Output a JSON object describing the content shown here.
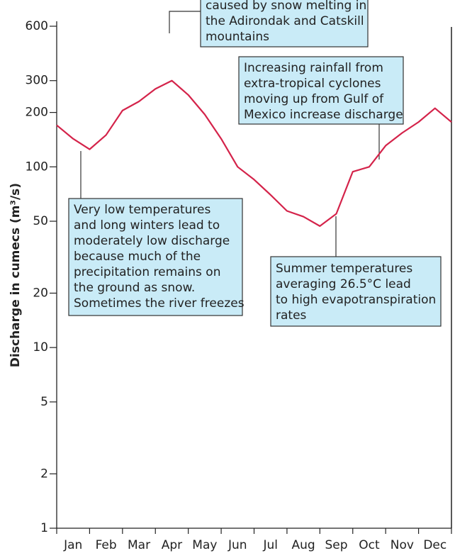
{
  "chart_data": {
    "type": "line",
    "y_label": "Discharge in cumecs (m³/s)",
    "categories": [
      null,
      "Jan",
      null,
      "Feb",
      null,
      "Mar",
      null,
      "Apr",
      null,
      "May",
      null,
      "Jun",
      null,
      "Jul",
      null,
      "Aug",
      null,
      "Sep",
      null,
      "Oct",
      null,
      "Nov",
      null,
      "Dec",
      null
    ],
    "series": [
      {
        "color": "#d4234a",
        "values": [
          170,
          143,
          125,
          150,
          205,
          230,
          270,
          300,
          250,
          195,
          143,
          100,
          85,
          70,
          57,
          53,
          47,
          55,
          94,
          100,
          131,
          154,
          177,
          211,
          177
        ]
      }
    ],
    "ylim": [
      1,
      600
    ],
    "yscale": "log",
    "yticks": [
      1,
      2,
      5,
      10,
      20,
      50,
      100,
      200,
      300,
      600
    ],
    "annotations": [
      [
        "caused by snow melting in",
        "the Adirondak and Catskill",
        "mountains"
      ],
      [
        "Increasing rainfall from",
        "extra-tropical cyclones",
        "moving up from Gulf of",
        "Mexico increase discharge"
      ],
      [
        "Very low temperatures",
        "and long winters lead to",
        "moderately low discharge",
        "because much of the",
        "precipitation remains on",
        "the ground as snow.",
        "Sometimes the river freezes"
      ],
      [
        "Summer temperatures",
        "averaging 26.5°C lead",
        "to high evapotranspiration",
        "rates"
      ]
    ]
  }
}
